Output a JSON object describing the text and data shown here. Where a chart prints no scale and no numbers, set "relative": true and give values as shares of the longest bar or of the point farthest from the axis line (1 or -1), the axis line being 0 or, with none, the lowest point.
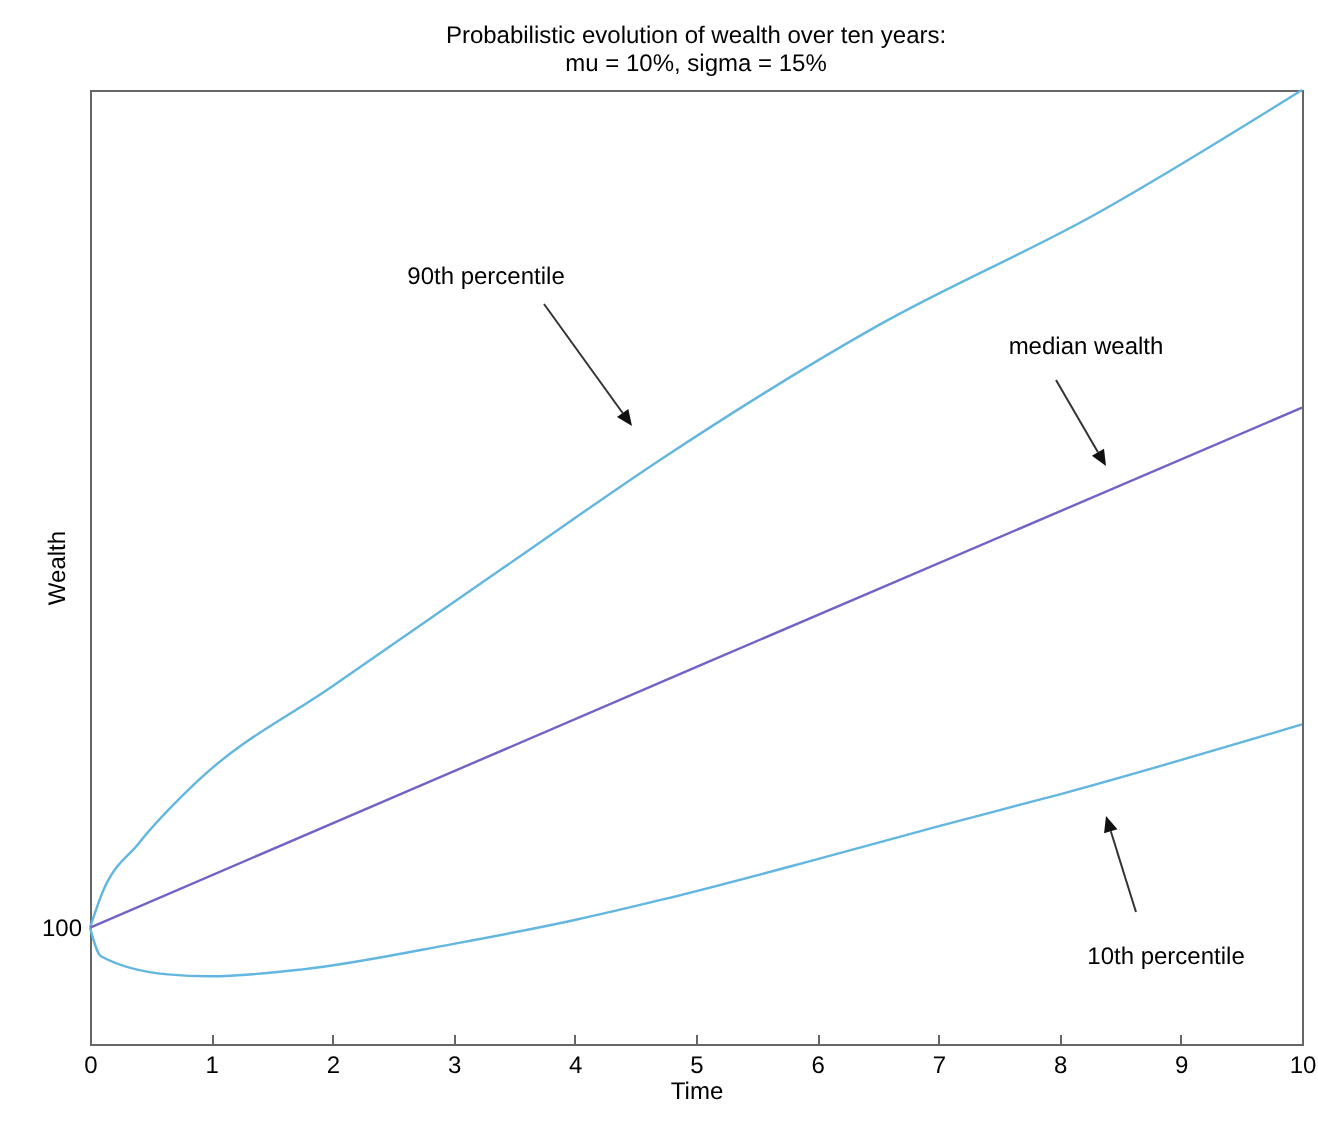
{
  "chart_data": {
    "type": "line",
    "title": "Probabilistic evolution of wealth over ten years:\nmu = 10%, sigma = 15%",
    "xlabel": "Time",
    "ylabel": "Wealth",
    "relative": true,
    "xlim": [
      0,
      10
    ],
    "xticks": [
      0,
      1,
      2,
      3,
      4,
      5,
      6,
      7,
      8,
      9,
      10
    ],
    "grid": false,
    "marker": "none",
    "line_style": "solid",
    "series": [
      {
        "color": "#62b6e0",
        "x": [
          0,
          0.1,
          0.4,
          0.9,
          2,
          3.5,
          4.7,
          6.5,
          8.3,
          10
        ],
        "values": [
          0.122,
          0.158,
          0.21,
          0.277,
          0.375,
          0.507,
          0.612,
          0.753,
          0.87,
          1
        ]
      },
      {
        "color": "#7262c8",
        "x": [
          0,
          5,
          10
        ],
        "values": [
          0.122,
          0.395,
          0.667
        ]
      },
      {
        "color": "#62b6e0",
        "x": [
          0,
          0.09,
          0.64,
          0.99,
          1.74,
          3,
          4,
          4.71,
          5.98,
          7.02,
          8.01,
          10
        ],
        "values": [
          0.122,
          0.092,
          0.073,
          0.071,
          0.078,
          0.105,
          0.13,
          0.151,
          0.193,
          0.229,
          0.262,
          0.335
        ]
      }
    ],
    "annotations": [
      {
        "text": "100",
        "x": 0,
        "y": 0.122
      },
      "90th percentile",
      "median wealth",
      "10th percentile"
    ]
  }
}
